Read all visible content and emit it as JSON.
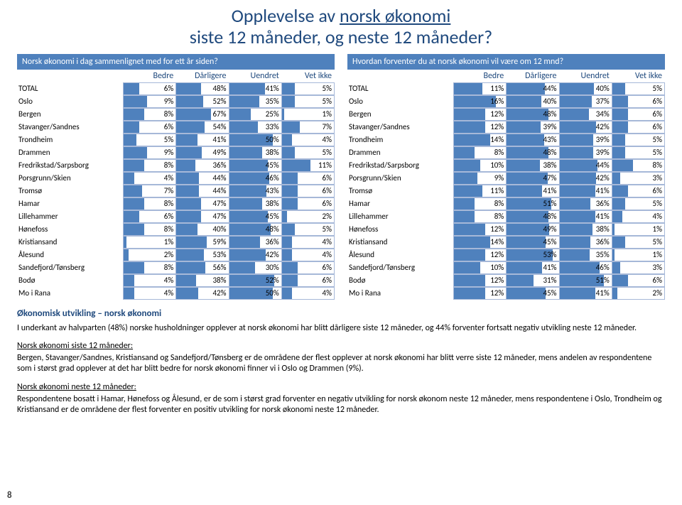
{
  "title_line1_a": "Opplevelse av ",
  "title_line1_b": "norsk økonomi",
  "title_line2": "siste 12 måneder, og neste 12 måneder?",
  "page_number": "8",
  "tables": {
    "left": {
      "header": "Norsk økonomi i dag sammenlignet med for ett år siden?",
      "columns": [
        "Bedre",
        "Dårligere",
        "Uendret",
        "Vet ikke"
      ],
      "max": [
        20,
        100,
        60,
        20
      ],
      "rows": [
        {
          "label": "TOTAL",
          "v": [
            6,
            48,
            41,
            5
          ]
        },
        {
          "label": "Oslo",
          "v": [
            9,
            52,
            35,
            5
          ]
        },
        {
          "label": "Bergen",
          "v": [
            8,
            67,
            25,
            1
          ]
        },
        {
          "label": "Stavanger/Sandnes",
          "v": [
            6,
            54,
            33,
            7
          ]
        },
        {
          "label": "Trondheim",
          "v": [
            5,
            41,
            50,
            4
          ]
        },
        {
          "label": "Drammen",
          "v": [
            9,
            49,
            38,
            5
          ]
        },
        {
          "label": "Fredrikstad/Sarpsborg",
          "v": [
            8,
            36,
            45,
            11
          ]
        },
        {
          "label": "Porsgrunn/Skien",
          "v": [
            4,
            44,
            46,
            6
          ]
        },
        {
          "label": "Tromsø",
          "v": [
            7,
            44,
            43,
            6
          ]
        },
        {
          "label": "Hamar",
          "v": [
            8,
            47,
            38,
            6
          ]
        },
        {
          "label": "Lillehammer",
          "v": [
            6,
            47,
            45,
            2
          ]
        },
        {
          "label": "Hønefoss",
          "v": [
            8,
            40,
            48,
            5
          ]
        },
        {
          "label": "Kristiansand",
          "v": [
            1,
            59,
            36,
            4
          ]
        },
        {
          "label": "Ålesund",
          "v": [
            2,
            53,
            42,
            4
          ]
        },
        {
          "label": "Sandefjord/Tønsberg",
          "v": [
            8,
            56,
            30,
            6
          ]
        },
        {
          "label": "Bodø",
          "v": [
            4,
            38,
            52,
            6
          ]
        },
        {
          "label": "Mo i Rana",
          "v": [
            4,
            42,
            50,
            4
          ]
        }
      ]
    },
    "right": {
      "header": "Hvordan forventer du at norsk økonomi vil være om 12 mnd?",
      "columns": [
        "Bedre",
        "Dårligere",
        "Uendret",
        "Vet ikke"
      ],
      "max": [
        20,
        60,
        60,
        20
      ],
      "rows": [
        {
          "label": "TOTAL",
          "v": [
            11,
            44,
            40,
            5
          ]
        },
        {
          "label": "Oslo",
          "v": [
            16,
            40,
            37,
            6
          ]
        },
        {
          "label": "Bergen",
          "v": [
            12,
            48,
            34,
            6
          ]
        },
        {
          "label": "Stavanger/Sandnes",
          "v": [
            12,
            39,
            42,
            6
          ]
        },
        {
          "label": "Trondheim",
          "v": [
            14,
            43,
            39,
            5
          ]
        },
        {
          "label": "Drammen",
          "v": [
            8,
            48,
            39,
            5
          ]
        },
        {
          "label": "Fredrikstad/Sarpsborg",
          "v": [
            10,
            38,
            44,
            8
          ]
        },
        {
          "label": "Porsgrunn/Skien",
          "v": [
            9,
            47,
            42,
            3
          ]
        },
        {
          "label": "Tromsø",
          "v": [
            11,
            41,
            41,
            6
          ]
        },
        {
          "label": "Hamar",
          "v": [
            8,
            51,
            36,
            5
          ]
        },
        {
          "label": "Lillehammer",
          "v": [
            8,
            48,
            41,
            4
          ]
        },
        {
          "label": "Hønefoss",
          "v": [
            12,
            49,
            38,
            1
          ]
        },
        {
          "label": "Kristiansand",
          "v": [
            14,
            45,
            36,
            5
          ]
        },
        {
          "label": "Ålesund",
          "v": [
            12,
            53,
            35,
            1
          ]
        },
        {
          "label": "Sandefjord/Tønsberg",
          "v": [
            10,
            41,
            46,
            3
          ]
        },
        {
          "label": "Bodø",
          "v": [
            12,
            31,
            51,
            6
          ]
        },
        {
          "label": "Mo i Rana",
          "v": [
            12,
            45,
            41,
            2
          ]
        }
      ]
    }
  },
  "bar_color": "#4f81bd",
  "commentary": {
    "heading": "Økonomisk utvikling – norsk økonomi",
    "p1": "I underkant av halvparten (48%) norske husholdninger opplever at norsk økonomi har blitt dårligere siste 12 måneder, og 44% forventer fortsatt negativ utvikling neste 12 måneder.",
    "s1_label": "Norsk økonomi siste 12 måneder:",
    "s1_text": "Bergen, Stavanger/Sandnes, Kristiansand og Sandefjord/Tønsberg er de områdene der flest opplever at norsk økonomi har blitt verre siste 12 måneder, mens andelen av respondentene som i størst grad opplever at det har blitt bedre for norsk økonomi finner vi i Oslo og Drammen (9%).",
    "s2_label": "Norsk økonomi neste 12 måneder:",
    "s2_text": "Respondentene bosatt i Hamar,  Hønefoss og Ålesund, er de som i størst grad forventer en negativ utvikling for norsk økonom neste 12 måneder, mens respondentene i Oslo, Trondheim og Kristiansand er de områdene der flest forventer en positiv utvikling for norsk økonomi neste 12 måneder."
  }
}
